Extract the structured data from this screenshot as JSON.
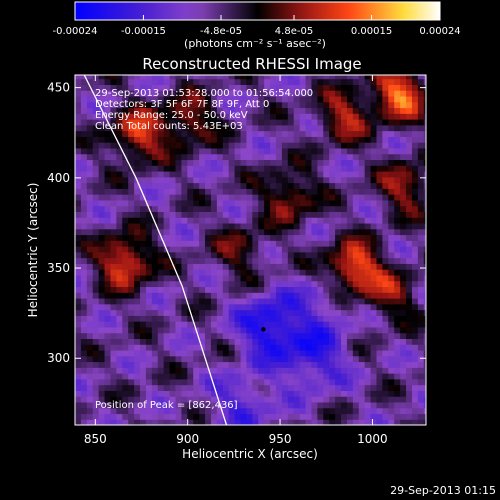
{
  "chart_data": {
    "type": "heatmap",
    "title": "Reconstructed RHESSI Image",
    "xlabel": "Heliocentric X (arcsec)",
    "ylabel": "Heliocentric Y (arcsec)",
    "xlim": [
      839,
      1029
    ],
    "ylim": [
      263,
      457
    ],
    "x_ticks": [
      850,
      900,
      950,
      1000
    ],
    "y_ticks": [
      300,
      350,
      400,
      450
    ],
    "colorbar": {
      "range": [
        -0.00024,
        0.00024
      ],
      "ticks": [
        -0.00024,
        -0.00015,
        -4.8e-05,
        4.8e-05,
        0.00015,
        0.00024
      ],
      "tick_labels": [
        "-0.00024",
        "-0.00015",
        "-4.8e-05",
        "4.8e-05",
        "0.00015",
        "0.00024"
      ],
      "label": "(photons cm⁻² s⁻¹ asec⁻²)",
      "colors": [
        "#0000ff",
        "#4a1fd6",
        "#8a44c8",
        "#000000",
        "#b0201b",
        "#ff5a10",
        "#ffff70",
        "#ffffff"
      ]
    },
    "annotations": [
      "29-Sep-2013 01:53:28.000 to 01:56:54.000",
      "Detectors: 3F 5F 6F 7F 8F 9F, Att 0",
      "Energy Range: 25.0 - 50.0 keV",
      "Clean    Total counts: 5.43E+03"
    ],
    "peak_label": "Position of Peak = [862,436]",
    "peak_position": [
      862,
      436
    ],
    "marker_position": [
      941,
      316
    ],
    "limb_curve": [
      [
        844,
        457
      ],
      [
        872,
        400
      ],
      [
        897,
        340
      ],
      [
        921,
        263
      ]
    ],
    "hot_regions": [
      {
        "x": 873,
        "y": 424,
        "value": 0.00016
      },
      {
        "x": 866,
        "y": 354,
        "value": 0.00018
      },
      {
        "x": 900,
        "y": 432,
        "value": 0.00012
      },
      {
        "x": 985,
        "y": 435,
        "value": 0.00013
      },
      {
        "x": 1015,
        "y": 447,
        "value": 0.0002
      },
      {
        "x": 955,
        "y": 390,
        "value": 0.00012
      },
      {
        "x": 1018,
        "y": 395,
        "value": 0.00012
      },
      {
        "x": 990,
        "y": 350,
        "value": 0.0002
      },
      {
        "x": 1010,
        "y": 335,
        "value": 0.0001
      },
      {
        "x": 928,
        "y": 360,
        "value": 8e-05
      }
    ],
    "cold_regions": [
      {
        "x": 945,
        "y": 318,
        "value": -0.00022
      },
      {
        "x": 968,
        "y": 300,
        "value": -0.00018
      },
      {
        "x": 930,
        "y": 275,
        "value": -0.00015
      },
      {
        "x": 975,
        "y": 330,
        "value": -0.00012
      }
    ]
  },
  "footer": {
    "timestamp": "29-Sep-2013 01:15"
  }
}
